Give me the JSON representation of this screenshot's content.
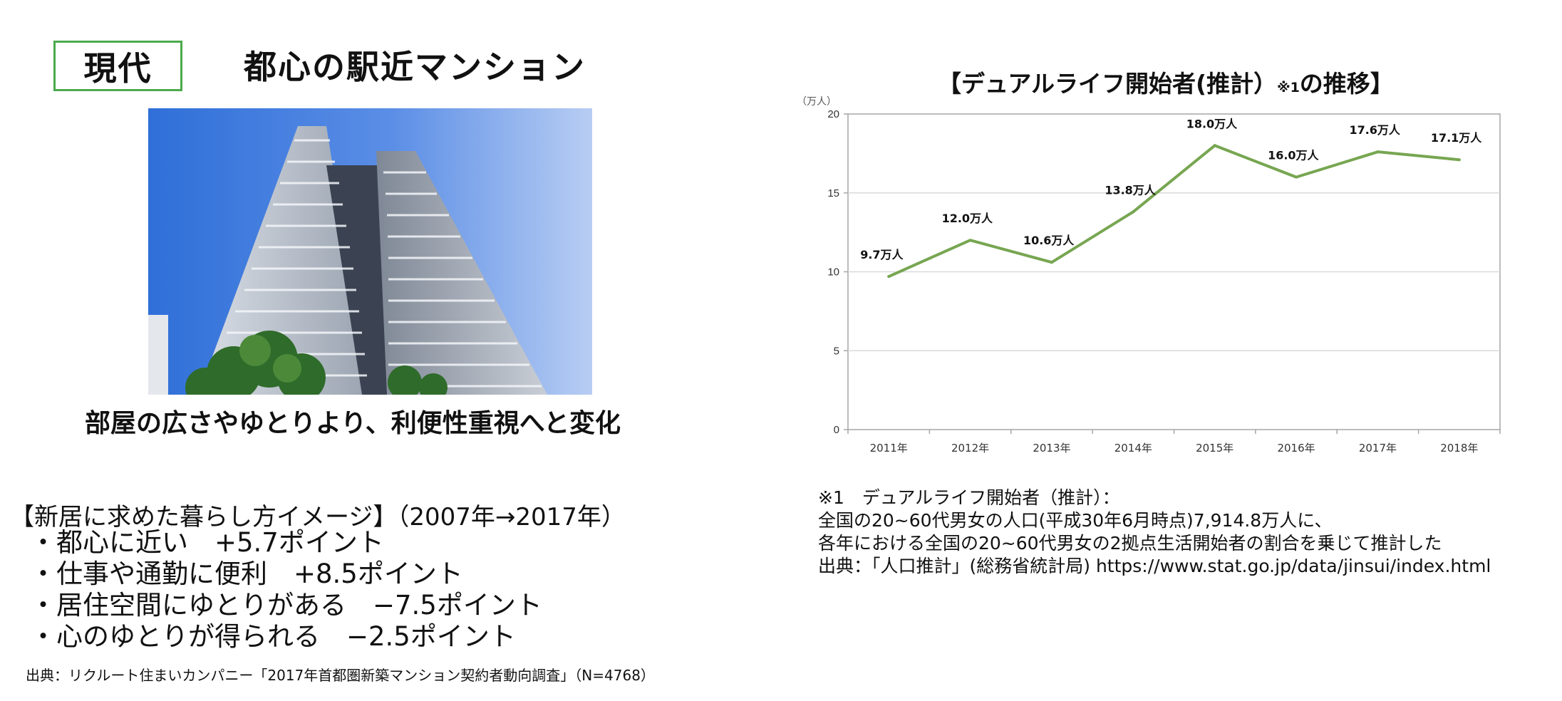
{
  "left": {
    "era_label": "現代",
    "title": "都心の駅近マンション",
    "caption": "部屋の広さやゆとりより、利便性重視へと変化",
    "survey_heading": "【新居に求めた暮らし方イメージ】（2007年→2017年）",
    "survey_items": [
      "・都心に近い　+5.7ポイント",
      "・仕事や通勤に便利　+8.5ポイント",
      "・居住空間にゆとりがある　−7.5ポイント",
      "・心のゆとりが得られる　−2.5ポイント"
    ],
    "source": "出典：リクルート住まいカンパニー「2017年首都圏新築マンション契約者動向調査」（N=4768）"
  },
  "chart_title_main": "【デュアルライフ開始者(推計）",
  "chart_title_note": "※1",
  "chart_title_end": "の推移】",
  "chart_data": {
    "type": "line",
    "title": "【デュアルライフ開始者(推計）※1の推移】",
    "ylabel": "（万人）",
    "categories": [
      "2011年",
      "2012年",
      "2013年",
      "2014年",
      "2015年",
      "2016年",
      "2017年",
      "2018年"
    ],
    "values": [
      9.7,
      12.0,
      10.6,
      13.8,
      18.0,
      16.0,
      17.6,
      17.1
    ],
    "data_labels": [
      "9.7万人",
      "12.0万人",
      "10.6万人",
      "13.8万人",
      "18.0万人",
      "16.0万人",
      "17.6万人",
      "17.1万人"
    ],
    "ylim": [
      0,
      20
    ],
    "yticks": [
      0,
      5,
      10,
      15,
      20
    ],
    "grid": true,
    "line_color": "#77a651"
  },
  "notes": {
    "line1": "※1　デュアルライフ開始者（推計）：",
    "line2": "全国の20~60代男女の人口(平成30年6月時点)7,914.8万人に、",
    "line3": "各年における全国の20~60代男女の2拠点生活開始者の割合を乗じて推計した",
    "line4": "出典：「人口推計」(総務省統計局) https://www.stat.go.jp/data/jinsui/index.html"
  }
}
